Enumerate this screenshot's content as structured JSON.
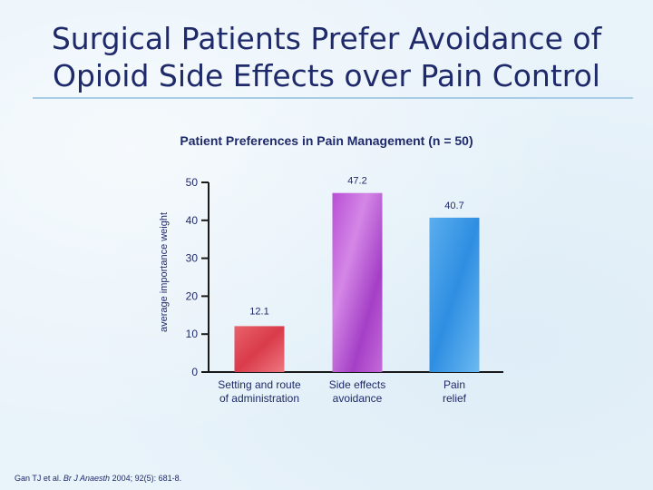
{
  "slide": {
    "title_line1": "Surgical Patients Prefer Avoidance of",
    "title_line2": "Opioid Side Effects over Pain Control"
  },
  "chart_data": {
    "type": "bar",
    "title": "Patient Preferences in Pain Management (n = 50)",
    "xlabel": "",
    "ylabel": "average importance weight",
    "ylim": [
      0,
      50
    ],
    "yticks": [
      "0",
      "10",
      "20",
      "30",
      "40",
      "50"
    ],
    "categories": [
      [
        "Setting and route",
        "of administration"
      ],
      [
        "Side effects",
        "avoidance"
      ],
      [
        "Pain",
        "relief"
      ]
    ],
    "values": [
      12.1,
      47.2,
      40.7
    ],
    "value_labels": [
      "12.1",
      "47.2",
      "40.7"
    ],
    "colors": [
      "#e04a55",
      "#b24fd0",
      "#3f9ae6"
    ]
  },
  "citation": {
    "authors": "Gan TJ et al.",
    "journal": "Br J Anaesth",
    "details": "2004; 92(5): 681-8."
  }
}
